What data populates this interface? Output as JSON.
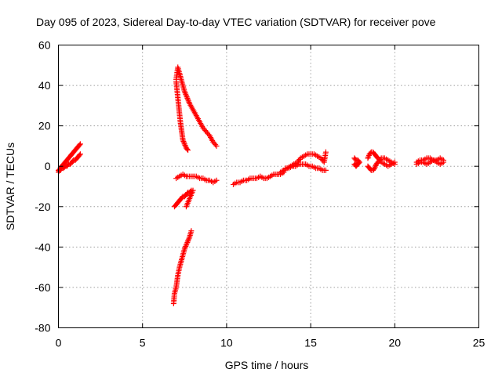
{
  "chart_data": {
    "type": "scatter",
    "title": "Day 095 of 2023, Sidereal Day-to-day VTEC variation (SDTVAR) for receiver pove",
    "xlabel": "GPS time / hours",
    "ylabel": "SDTVAR / TECUs",
    "xlim": [
      0,
      25
    ],
    "ylim": [
      -80,
      60
    ],
    "xticks": [
      "0",
      "5",
      "10",
      "15",
      "20",
      "25"
    ],
    "yticks": [
      "-80",
      "-60",
      "-40",
      "-20",
      "0",
      "20",
      "40",
      "60"
    ],
    "grid": true,
    "marker": "plus",
    "color": "#ff0000",
    "series": [
      {
        "x": [
          0.0,
          0.1,
          0.2,
          0.3,
          0.4,
          0.5,
          0.6,
          0.7,
          0.8,
          0.9,
          1.0,
          1.1,
          1.2,
          1.3
        ],
        "y": [
          -3,
          -1,
          0,
          1,
          2,
          3,
          4,
          5,
          6,
          7,
          8,
          9,
          10,
          11
        ]
      },
      {
        "x": [
          0.0,
          0.1,
          0.2,
          0.3,
          0.4,
          0.5,
          0.6,
          0.7,
          0.8,
          0.9,
          1.0,
          1.1,
          1.2,
          1.3
        ],
        "y": [
          -2,
          -2,
          -1,
          -1,
          0,
          0,
          1,
          1,
          2,
          3,
          3,
          4,
          5,
          6
        ]
      },
      {
        "x": [
          7.0,
          7.1,
          7.2,
          7.3,
          7.4,
          7.5,
          7.6,
          7.7,
          7.8,
          8.0,
          8.2,
          8.4,
          8.6,
          8.8,
          9.0,
          9.2,
          9.4
        ],
        "y": [
          43,
          49,
          46,
          43,
          40,
          37,
          35,
          33,
          31,
          28,
          25,
          22,
          19,
          17,
          15,
          12,
          10
        ]
      },
      {
        "x": [
          7.0,
          7.05,
          7.1,
          7.15,
          7.2,
          7.25,
          7.3,
          7.35,
          7.4,
          7.5,
          7.6,
          7.7
        ],
        "y": [
          42,
          38,
          34,
          30,
          26,
          22,
          19,
          16,
          13,
          11,
          9,
          8
        ]
      },
      {
        "x": [
          7.0,
          7.2,
          7.4,
          7.6,
          7.8,
          8.0,
          8.2,
          8.4,
          8.6,
          8.8,
          9.0,
          9.2,
          9.4
        ],
        "y": [
          -6,
          -5,
          -4,
          -5,
          -5,
          -5,
          -5,
          -6,
          -6,
          -7,
          -7,
          -8,
          -7
        ]
      },
      {
        "x": [
          6.9,
          7.0,
          7.1,
          7.2,
          7.3,
          7.4,
          7.5,
          7.6,
          7.7,
          7.8,
          7.9,
          8.0,
          7.6
        ],
        "y": [
          -20,
          -19,
          -18,
          -17,
          -16,
          -15,
          -15,
          -14,
          -13,
          -13,
          -12,
          -12,
          -20
        ]
      },
      {
        "x": [
          6.85,
          6.9,
          7.0,
          7.05,
          7.1,
          7.2,
          7.3,
          7.4,
          7.5,
          7.6,
          7.7,
          7.8,
          7.9
        ],
        "y": [
          -68,
          -63,
          -60,
          -57,
          -54,
          -50,
          -47,
          -44,
          -41,
          -39,
          -37,
          -35,
          -32
        ]
      },
      {
        "x": [
          10.4,
          10.6,
          10.8,
          11.0,
          11.2,
          11.4,
          11.6,
          11.8,
          12.0,
          12.2,
          12.4,
          12.6,
          12.8,
          13.0,
          13.2,
          13.4
        ],
        "y": [
          -9,
          -8,
          -8,
          -7,
          -7,
          -6,
          -6,
          -6,
          -5,
          -6,
          -6,
          -5,
          -4,
          -4,
          -4,
          -3
        ]
      },
      {
        "x": [
          13.2,
          13.4,
          13.6,
          13.8,
          14.0,
          14.2,
          14.4,
          14.6,
          14.8,
          15.0,
          15.2,
          15.4,
          15.6,
          15.8,
          15.9
        ],
        "y": [
          -3,
          -2,
          -1,
          0,
          1,
          2,
          4,
          5,
          6,
          6,
          6,
          5,
          4,
          2,
          7
        ]
      },
      {
        "x": [
          13.5,
          13.7,
          13.9,
          14.1,
          14.3,
          14.5,
          14.7,
          14.9,
          15.1,
          15.3,
          15.5,
          15.7,
          15.9
        ],
        "y": [
          -1,
          -1,
          0,
          0,
          1,
          1,
          1,
          0,
          0,
          -1,
          -1,
          -2,
          -2
        ]
      },
      {
        "x": [
          17.6,
          17.7,
          17.8,
          17.9,
          17.6,
          17.7,
          17.8,
          17.9
        ],
        "y": [
          4,
          3,
          3,
          2,
          1,
          0,
          1,
          2
        ]
      },
      {
        "x": [
          18.4,
          18.5,
          18.6,
          18.7,
          18.8,
          18.9,
          19.0,
          19.2,
          19.4,
          19.6,
          19.8,
          20.0
        ],
        "y": [
          4,
          6,
          7,
          7,
          6,
          5,
          4,
          2,
          1,
          0,
          1,
          2
        ]
      },
      {
        "x": [
          18.4,
          18.5,
          18.6,
          18.7,
          18.8,
          18.9,
          19.0,
          19.2,
          19.4,
          19.6,
          19.8,
          20.0
        ],
        "y": [
          0,
          -1,
          -2,
          -2,
          -1,
          1,
          2,
          4,
          4,
          3,
          2,
          1
        ]
      },
      {
        "x": [
          21.3,
          21.5,
          21.7,
          21.9,
          22.1,
          22.3,
          22.5,
          22.7,
          22.9
        ],
        "y": [
          2,
          3,
          3,
          4,
          4,
          3,
          3,
          4,
          3
        ]
      },
      {
        "x": [
          21.3,
          21.5,
          21.7,
          21.9,
          22.1,
          22.3,
          22.5,
          22.7,
          22.9
        ],
        "y": [
          1,
          2,
          2,
          1,
          2,
          3,
          2,
          1,
          2
        ]
      }
    ]
  }
}
